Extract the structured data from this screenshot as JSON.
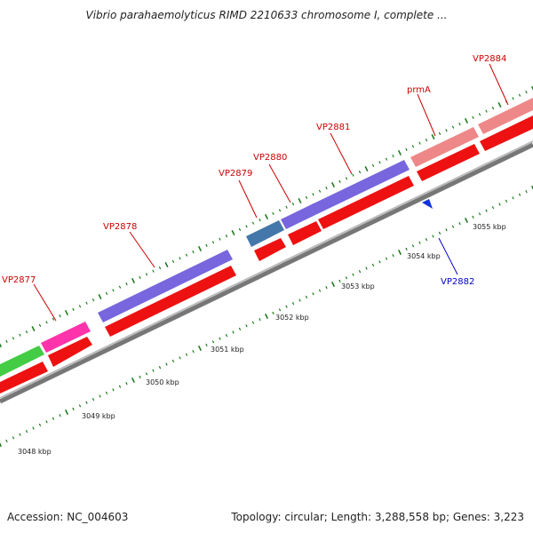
{
  "title": "Vibrio parahaemolyticus RIMD 2210633 chromosome I, complete ...",
  "footer": {
    "accession": "Accession: NC_004603",
    "topology": "Topology: circular; Length: 3,288,558 bp; Genes: 3,223"
  },
  "colors": {
    "forward_label": "#cc0000",
    "reverse_label": "#0000cc",
    "cds_red": "#ee1111",
    "backbone": "#888888",
    "tick_green": "#1a7a1a"
  },
  "genes": [
    {
      "name": "VP2877",
      "color": "#ff33aa"
    },
    {
      "name": "VP2878",
      "color": "#7766dd"
    },
    {
      "name": "VP2879",
      "color": "#4477aa"
    },
    {
      "name": "VP2880",
      "color": "#7766dd"
    },
    {
      "name": "VP2881",
      "color": "#7766dd"
    },
    {
      "name": "prmA",
      "color": "#ee8888"
    },
    {
      "name": "VP2884",
      "color": "#ee8888"
    },
    {
      "name": "VP2882",
      "color": "#1133dd"
    }
  ],
  "scale_labels": [
    "3048 kbp",
    "3049 kbp",
    "3050 kbp",
    "3051 kbp",
    "3052 kbp",
    "3053 kbp",
    "3054 kbp",
    "3055 kbp"
  ]
}
